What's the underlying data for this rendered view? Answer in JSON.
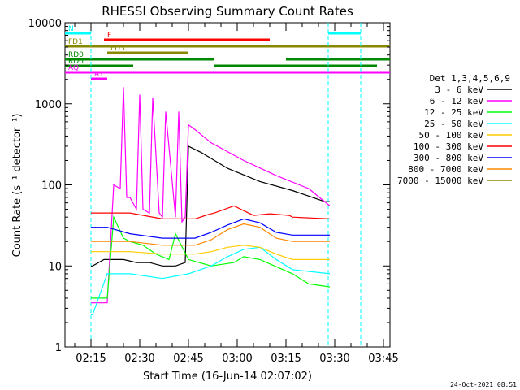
{
  "chart_data": {
    "type": "line",
    "title": "RHESSI Observing Summary Count Rates",
    "xlabel": "Start Time (16-Jun-14 02:07:02)",
    "ylabel": "Count Rate (s⁻¹ detector⁻¹)",
    "x_unit": "minutes since 02:07:02",
    "x_ticks": [
      {
        "label": "02:15",
        "value": 8
      },
      {
        "label": "02:30",
        "value": 23
      },
      {
        "label": "02:45",
        "value": 38
      },
      {
        "label": "03:00",
        "value": 53
      },
      {
        "label": "03:15",
        "value": 68
      },
      {
        "label": "03:30",
        "value": 83
      },
      {
        "label": "03:45",
        "value": 98
      }
    ],
    "xlim": [
      0,
      100
    ],
    "ylim": [
      1,
      10000
    ],
    "y_scale": "log",
    "y_ticks": [
      {
        "label": "1",
        "value": 1
      },
      {
        "label": "10",
        "value": 10
      },
      {
        "label": "100",
        "value": 100
      },
      {
        "label": "1000",
        "value": 1000
      },
      {
        "label": "10000",
        "value": 10000
      }
    ],
    "legend_title": "Det 1,3,4,5,6,9",
    "legend_position": "right",
    "series": [
      {
        "name": "3 - 6 keV",
        "color": "#000000",
        "x": [
          8,
          8.5,
          12,
          13,
          18,
          22,
          26,
          30,
          34,
          37,
          38,
          42,
          50,
          60,
          70,
          80,
          81.5
        ],
        "y": [
          10,
          10,
          12,
          12,
          12,
          11,
          11,
          10,
          10,
          11,
          300,
          250,
          160,
          110,
          85,
          62,
          62
        ]
      },
      {
        "name": "6 - 12 keV",
        "color": "#ff00ff",
        "x": [
          8,
          8.5,
          13,
          15,
          17,
          18,
          19,
          20,
          22,
          23,
          24,
          26,
          27,
          29,
          30,
          31,
          34,
          35,
          36,
          37,
          38,
          40,
          45,
          55,
          65,
          75,
          81.5
        ],
        "y": [
          3.5,
          3.5,
          3.5,
          100,
          90,
          1600,
          70,
          70,
          50,
          1300,
          50,
          45,
          1200,
          45,
          40,
          800,
          40,
          800,
          35,
          40,
          550,
          480,
          330,
          200,
          130,
          90,
          55
        ]
      },
      {
        "name": "12 - 25 keV",
        "color": "#00ff00",
        "x": [
          8,
          8.5,
          13,
          15,
          18,
          20,
          24,
          28,
          32,
          34,
          38,
          45,
          52,
          55,
          60,
          70,
          75,
          81.5
        ],
        "y": [
          4,
          4,
          4,
          40,
          22,
          20,
          18,
          14,
          12,
          25,
          12,
          10,
          11,
          13,
          12,
          8,
          6,
          5.5
        ]
      },
      {
        "name": "25 - 50 keV",
        "color": "#00ffff",
        "x": [
          8,
          8.5,
          13,
          20,
          30,
          38,
          45,
          50,
          55,
          60,
          65,
          70,
          81.5
        ],
        "y": [
          2.5,
          2.5,
          8,
          8,
          7,
          8,
          10,
          13,
          16,
          17,
          12,
          9,
          8
        ]
      },
      {
        "name": "50 - 100 keV",
        "color": "#ffcc00",
        "x": [
          8,
          8.5,
          13,
          20,
          30,
          40,
          45,
          50,
          55,
          60,
          65,
          70,
          81.5
        ],
        "y": [
          15,
          15,
          15,
          15,
          14,
          14,
          15,
          17,
          18,
          17,
          14,
          12,
          12
        ]
      },
      {
        "name": "100 - 300 keV",
        "color": "#ff0000",
        "x": [
          8,
          8.5,
          13,
          20,
          30,
          40,
          44,
          46,
          52,
          58,
          63,
          69,
          70,
          81.5
        ],
        "y": [
          45,
          45,
          45,
          45,
          38,
          38,
          43,
          45,
          55,
          42,
          44,
          42,
          40,
          38
        ]
      },
      {
        "name": "300 - 800 keV",
        "color": "#0000ff",
        "x": [
          8,
          8.5,
          13,
          20,
          30,
          40,
          45,
          50,
          55,
          60,
          65,
          70,
          81.5
        ],
        "y": [
          30,
          30,
          30,
          25,
          22,
          22,
          26,
          32,
          38,
          34,
          26,
          24,
          24
        ]
      },
      {
        "name": "800 - 7000 keV",
        "color": "#ff8800",
        "x": [
          8,
          8.5,
          13,
          20,
          30,
          40,
          45,
          50,
          55,
          60,
          65,
          70,
          81.5
        ],
        "y": [
          20,
          20,
          20,
          20,
          18,
          18,
          21,
          28,
          33,
          30,
          22,
          20,
          20
        ]
      },
      {
        "name": "7000 - 15000 keV",
        "color": "#888800",
        "x": [],
        "y": []
      }
    ],
    "flags": [
      {
        "label": "N",
        "color": "#00ffff",
        "segments": [
          [
            0,
            8
          ],
          [
            81,
            91
          ]
        ]
      },
      {
        "label": "F",
        "color": "#ff0000",
        "segments": [
          [
            12,
            63
          ]
        ]
      },
      {
        "label": "FD1",
        "color": "#888800",
        "segments": [
          [
            0,
            100
          ]
        ]
      },
      {
        "label": "FD3",
        "color": "#888800",
        "segments": [
          [
            13,
            38
          ]
        ]
      },
      {
        "label": "RD0",
        "color": "#008800",
        "segments": [
          [
            0,
            46
          ],
          [
            68,
            100
          ]
        ]
      },
      {
        "label": "RD6",
        "color": "#008800",
        "segments": [
          [
            0,
            21
          ],
          [
            46,
            96
          ]
        ]
      },
      {
        "label": "AQ",
        "color": "#ff00ff",
        "segments": [
          [
            0,
            100
          ]
        ]
      },
      {
        "label": "A1",
        "color": "#ff00ff",
        "segments": [
          [
            8,
            13
          ]
        ]
      }
    ],
    "grid": false
  },
  "timestamp": "24-Oct-2021 08:51"
}
